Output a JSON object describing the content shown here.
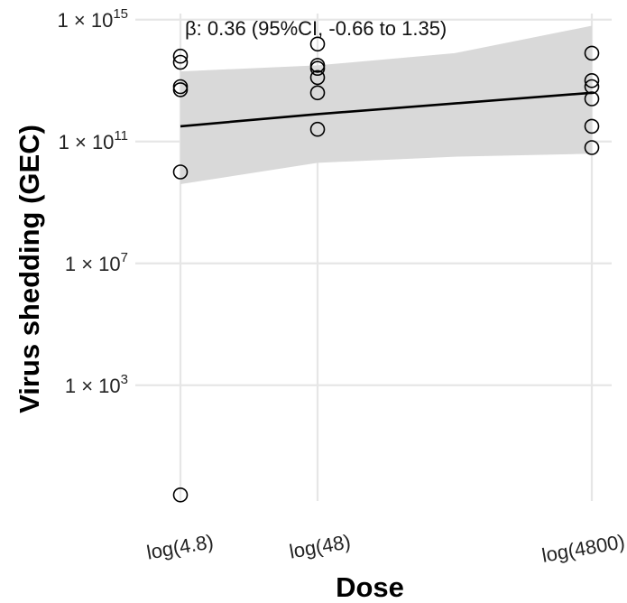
{
  "chart_data": {
    "type": "scatter",
    "xlabel": "Dose",
    "ylabel": "Virus shedding (GEC)",
    "annotation": "β: 0.36 (95%CI, -0.66 to 1.35)",
    "x_scale": "categorical-log",
    "y_scale": "log10",
    "ylim_log10": [
      -0.8,
      15.2
    ],
    "grid": true,
    "x_ticks": [
      {
        "label": "log(4.8)",
        "value": 4.8
      },
      {
        "label": "log(48)",
        "value": 48
      },
      {
        "label": "log(4800)",
        "value": 4800
      }
    ],
    "y_ticks": [
      {
        "base": "1 × 10",
        "exp": "3",
        "log10": 3
      },
      {
        "base": "1 × 10",
        "exp": "7",
        "log10": 7
      },
      {
        "base": "1 × 10",
        "exp": "11",
        "log10": 11
      },
      {
        "base": "1 × 10",
        "exp": "15",
        "log10": 15
      }
    ],
    "points": [
      {
        "dose": 4.8,
        "log10_gec": 13.8
      },
      {
        "dose": 4.8,
        "log10_gec": 13.6
      },
      {
        "dose": 4.8,
        "log10_gec": 12.8
      },
      {
        "dose": 4.8,
        "log10_gec": 12.7
      },
      {
        "dose": 4.8,
        "log10_gec": 10.0
      },
      {
        "dose": 4.8,
        "log10_gec": -0.6
      },
      {
        "dose": 48,
        "log10_gec": 14.2
      },
      {
        "dose": 48,
        "log10_gec": 13.5
      },
      {
        "dose": 48,
        "log10_gec": 13.4
      },
      {
        "dose": 48,
        "log10_gec": 13.1
      },
      {
        "dose": 48,
        "log10_gec": 12.6
      },
      {
        "dose": 48,
        "log10_gec": 11.4
      },
      {
        "dose": 4800,
        "log10_gec": 13.9
      },
      {
        "dose": 4800,
        "log10_gec": 13.0
      },
      {
        "dose": 4800,
        "log10_gec": 12.8
      },
      {
        "dose": 4800,
        "log10_gec": 12.4
      },
      {
        "dose": 4800,
        "log10_gec": 11.5
      },
      {
        "dose": 4800,
        "log10_gec": 10.8
      }
    ],
    "fit_line": {
      "dose": [
        4.8,
        48,
        4800
      ],
      "log10_gec": [
        11.5,
        11.9,
        12.6
      ]
    },
    "confidence_band": {
      "dose": [
        4.8,
        48,
        480,
        4800
      ],
      "upper": [
        13.3,
        13.5,
        13.9,
        14.8
      ],
      "lower": [
        9.6,
        10.3,
        10.5,
        10.6
      ]
    },
    "colors": {
      "band": "#d9d9d9",
      "line": "#000000",
      "grid": "#e6e6e6",
      "points": "#000000"
    }
  }
}
